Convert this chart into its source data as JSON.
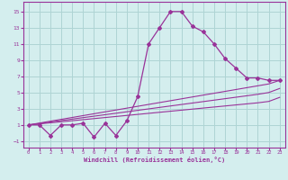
{
  "xlabel": "Windchill (Refroidissement éolien,°C)",
  "bg_color": "#d4eeee",
  "grid_color": "#aed4d4",
  "line_color": "#993399",
  "x_data": [
    0,
    1,
    2,
    3,
    4,
    5,
    6,
    7,
    8,
    9,
    10,
    11,
    12,
    13,
    14,
    15,
    16,
    17,
    18,
    19,
    20,
    21,
    22,
    23
  ],
  "y_main": [
    1,
    1,
    -0.3,
    1,
    1,
    1.2,
    -0.5,
    1.2,
    -0.3,
    1.5,
    4.5,
    11,
    13,
    15,
    15,
    13.2,
    12.5,
    11,
    9.2,
    8,
    6.8,
    6.8,
    6.5,
    6.5
  ],
  "y_line1": [
    1,
    1.23,
    1.46,
    1.69,
    1.92,
    2.15,
    2.38,
    2.61,
    2.84,
    3.07,
    3.3,
    3.53,
    3.76,
    3.99,
    4.22,
    4.45,
    4.68,
    4.91,
    5.14,
    5.37,
    5.6,
    5.83,
    6.06,
    6.5
  ],
  "y_line2": [
    1,
    1.18,
    1.36,
    1.54,
    1.72,
    1.9,
    2.08,
    2.26,
    2.44,
    2.62,
    2.8,
    2.98,
    3.16,
    3.34,
    3.52,
    3.7,
    3.88,
    4.06,
    4.24,
    4.42,
    4.6,
    4.78,
    5.0,
    5.5
  ],
  "y_line3": [
    1,
    1.13,
    1.26,
    1.39,
    1.52,
    1.65,
    1.78,
    1.91,
    2.04,
    2.17,
    2.3,
    2.43,
    2.56,
    2.69,
    2.82,
    2.95,
    3.08,
    3.21,
    3.34,
    3.47,
    3.6,
    3.73,
    3.9,
    4.4
  ],
  "xlim": [
    -0.5,
    23.5
  ],
  "ylim": [
    -1.8,
    16.2
  ],
  "yticks": [
    -1,
    1,
    3,
    5,
    7,
    9,
    11,
    13,
    15
  ],
  "xticks": [
    0,
    1,
    2,
    3,
    4,
    5,
    6,
    7,
    8,
    9,
    10,
    11,
    12,
    13,
    14,
    15,
    16,
    17,
    18,
    19,
    20,
    21,
    22,
    23
  ]
}
